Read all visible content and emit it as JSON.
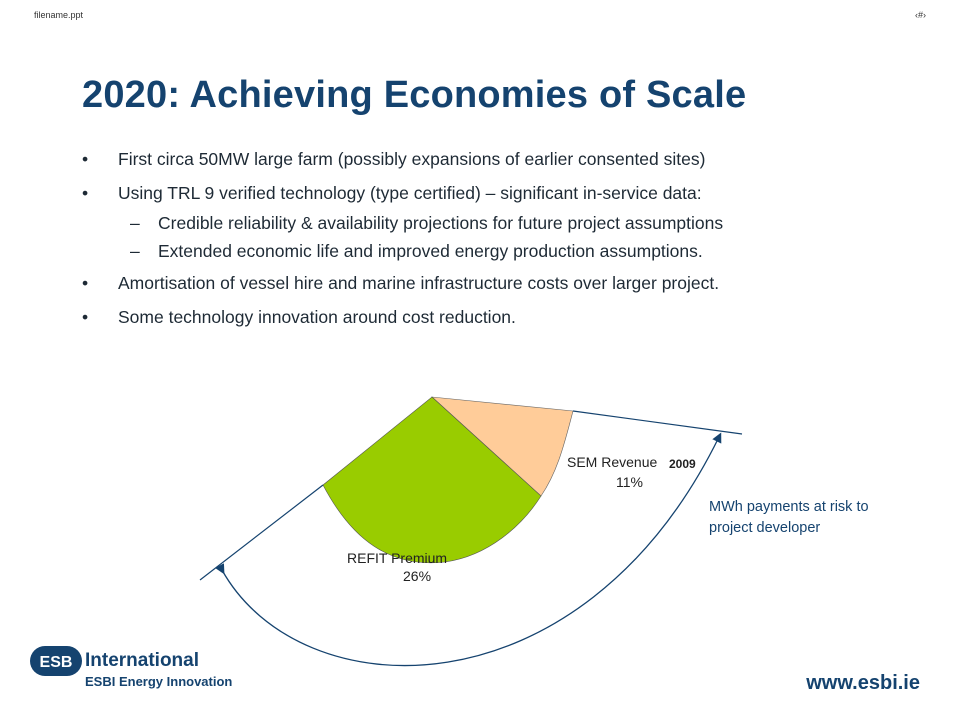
{
  "header": {
    "filename": "filename.ppt",
    "slide_number": "‹#›"
  },
  "title": "2020:  Achieving Economies of Scale",
  "bullets": [
    {
      "text": "First circa 50MW large farm (possibly expansions of earlier consented sites)"
    },
    {
      "text": "Using TRL 9 verified technology (type certified) – significant in-service data:"
    },
    {
      "text": "Amortisation of vessel hire and marine infrastructure costs over larger project."
    },
    {
      "text": "Some technology innovation around cost reduction."
    }
  ],
  "sub_bullets": [
    "Credible reliability & availability projections for future project assumptions",
    "Extended economic life and improved energy production assumptions."
  ],
  "bullet_symbol": "•",
  "dash_symbol": "–",
  "diagram": {
    "sem_label": "SEM Revenue",
    "sem_pct": "11%",
    "refit_label": "REFIT Premium",
    "refit_pct": "26%",
    "year": "2009",
    "risk_text": "MWh payments at risk to project developer",
    "colors": {
      "refit": "#99cc00",
      "sem": "#ffcc99",
      "outline": "#15436f"
    }
  },
  "footer": {
    "logo_text": "ESB",
    "company": "International",
    "division": "ESBI Energy Innovation",
    "url": "www.esbi.ie"
  }
}
